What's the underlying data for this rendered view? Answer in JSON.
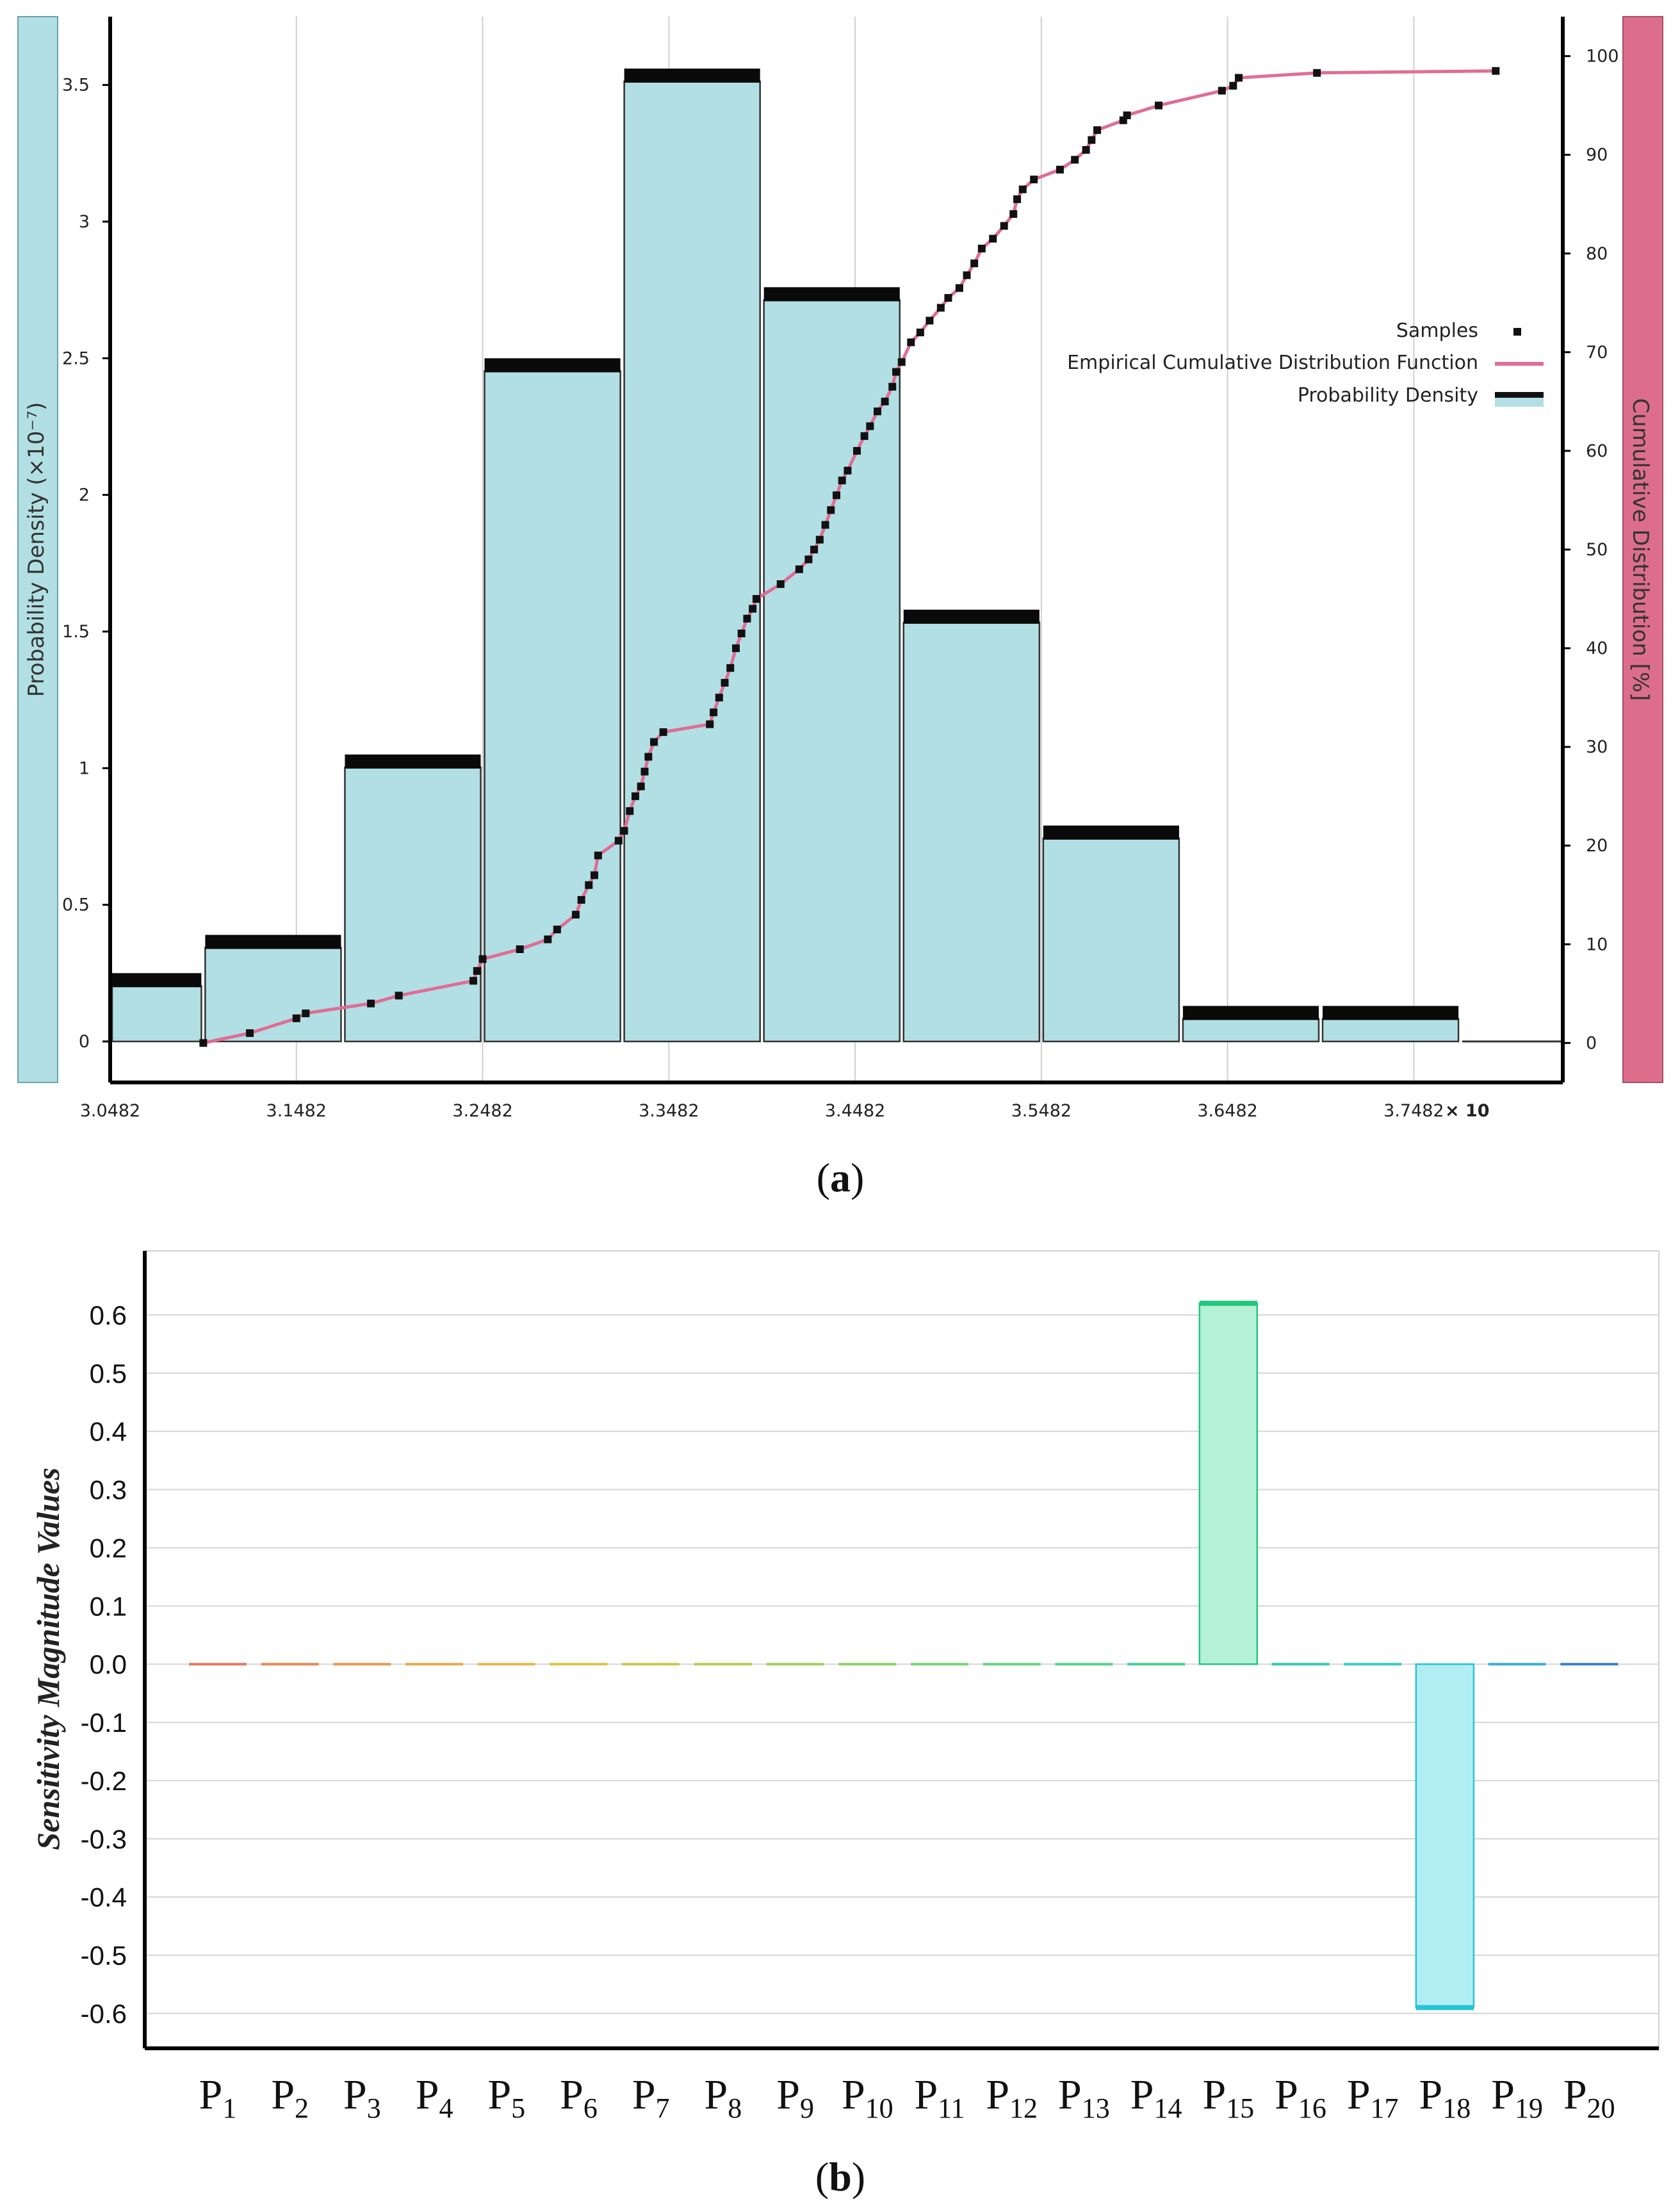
{
  "captions": {
    "a": "a",
    "b": "b"
  },
  "chart_data": [
    {
      "type": "bar",
      "panel": "a",
      "xlabel": "",
      "x_multiplier_label": "× 10",
      "x_ticks": [
        "3.0482",
        "3.1482",
        "3.2482",
        "3.3482",
        "3.4482",
        "3.5482",
        "3.6482",
        "3.7482"
      ],
      "xlim": [
        3.0482,
        3.8282
      ],
      "ylabel_left": "Probability Density  (×10⁻⁷)",
      "ylim_left": [
        -0.15,
        3.75
      ],
      "y_ticks_left": [
        "0",
        "0.5",
        "1",
        "1.5",
        "2",
        "2.5",
        "3",
        "3.5"
      ],
      "ylabel_right": "Cumulative Distribution [%]",
      "ylim_right": [
        -4,
        104
      ],
      "y_ticks_right": [
        "0",
        "10",
        "20",
        "30",
        "40",
        "50",
        "60",
        "70",
        "80",
        "90",
        "100"
      ],
      "grid": "vertical",
      "legend_position": "right",
      "legend": [
        {
          "label": "Samples",
          "kind": "marker"
        },
        {
          "label": "Empirical Cumulative Distribution Function",
          "kind": "line"
        },
        {
          "label": "Probability Density",
          "kind": "bar"
        }
      ],
      "bins": [
        {
          "start": 3.0482,
          "end": 3.0982,
          "value": 0.25
        },
        {
          "start": 3.0982,
          "end": 3.1732,
          "value": 0.39
        },
        {
          "start": 3.1732,
          "end": 3.2482,
          "value": 1.05
        },
        {
          "start": 3.2482,
          "end": 3.3232,
          "value": 2.5
        },
        {
          "start": 3.3232,
          "end": 3.3982,
          "value": 3.56
        },
        {
          "start": 3.3982,
          "end": 3.4732,
          "value": 2.76
        },
        {
          "start": 3.4732,
          "end": 3.5482,
          "value": 1.58
        },
        {
          "start": 3.5482,
          "end": 3.6232,
          "value": 0.79
        },
        {
          "start": 3.6232,
          "end": 3.6982,
          "value": 0.13
        },
        {
          "start": 3.6982,
          "end": 3.7732,
          "value": 0.13
        },
        {
          "start": 3.7732,
          "end": 3.8282,
          "value": 0.0
        }
      ],
      "ecdf_samples": {
        "x": [
          3.0982,
          3.1232,
          3.1482,
          3.1532,
          3.1882,
          3.2032,
          3.2432,
          3.2452,
          3.2482,
          3.2682,
          3.2832,
          3.2882,
          3.2982,
          3.3012,
          3.3052,
          3.3082,
          3.3102,
          3.3212,
          3.3242,
          3.3272,
          3.3302,
          3.3332,
          3.3352,
          3.3372,
          3.3402,
          3.3452,
          3.3702,
          3.3722,
          3.3752,
          3.3782,
          3.3812,
          3.3842,
          3.3872,
          3.3902,
          3.3932,
          3.3952,
          3.4082,
          3.4182,
          3.4232,
          3.4262,
          3.4292,
          3.4322,
          3.4352,
          3.4382,
          3.4412,
          3.4442,
          3.4492,
          3.4532,
          3.4562,
          3.4602,
          3.4642,
          3.4682,
          3.4702,
          3.4732,
          3.4782,
          3.4832,
          3.4882,
          3.4942,
          3.4982,
          3.5042,
          3.5082,
          3.5122,
          3.5162,
          3.5222,
          3.5282,
          3.5332,
          3.5352,
          3.5382,
          3.5442,
          3.5582,
          3.5662,
          3.5722,
          3.5752,
          3.5782,
          3.5922,
          3.5942,
          3.6112,
          3.6452,
          3.6512,
          3.6542,
          3.6962,
          3.7922
        ],
        "y": [
          0,
          1,
          2.5,
          3,
          4,
          4.8,
          6.3,
          7.3,
          8.5,
          9.5,
          10.5,
          11.5,
          13,
          14.5,
          16,
          17,
          19,
          20.5,
          21.5,
          23.5,
          25,
          26,
          27.5,
          29,
          30.5,
          31.5,
          32.3,
          33.5,
          35,
          36.5,
          38,
          40,
          41.5,
          43,
          44,
          45,
          46.5,
          48,
          49,
          50,
          51,
          52.5,
          54,
          55.5,
          57,
          58,
          60,
          61.5,
          62.5,
          64,
          65,
          66.5,
          68,
          69,
          71,
          72,
          73.2,
          74.5,
          75.5,
          76.5,
          77.8,
          79,
          80.5,
          81.5,
          82.8,
          84,
          85.5,
          86.5,
          87.5,
          88.5,
          89.5,
          90.5,
          91.5,
          92.5,
          93.5,
          94,
          95,
          96.5,
          97,
          97.8,
          98.3,
          98.5
        ]
      }
    },
    {
      "type": "bar",
      "panel": "b",
      "ylabel": "Sensitivity Magnitude Values",
      "ylim": [
        -0.66,
        0.71
      ],
      "y_ticks": [
        "0.6",
        "0.5",
        "0.4",
        "0.3",
        "0.2",
        "0.1",
        "0.0",
        "-0.1",
        "-0.2",
        "-0.3",
        "-0.4",
        "-0.5",
        "-0.6"
      ],
      "grid": "horizontal",
      "categories": [
        {
          "p": "P",
          "sub": "1"
        },
        {
          "p": "P",
          "sub": "2"
        },
        {
          "p": "P",
          "sub": "3"
        },
        {
          "p": "P",
          "sub": "4"
        },
        {
          "p": "P",
          "sub": "5"
        },
        {
          "p": "P",
          "sub": "6"
        },
        {
          "p": "P",
          "sub": "7"
        },
        {
          "p": "P",
          "sub": "8"
        },
        {
          "p": "P",
          "sub": "9"
        },
        {
          "p": "P",
          "sub": "10"
        },
        {
          "p": "P",
          "sub": "11"
        },
        {
          "p": "P",
          "sub": "12"
        },
        {
          "p": "P",
          "sub": "13"
        },
        {
          "p": "P",
          "sub": "14"
        },
        {
          "p": "P",
          "sub": "15"
        },
        {
          "p": "P",
          "sub": "16"
        },
        {
          "p": "P",
          "sub": "17"
        },
        {
          "p": "P",
          "sub": "18"
        },
        {
          "p": "P",
          "sub": "19"
        },
        {
          "p": "P",
          "sub": "20"
        }
      ],
      "values": [
        0,
        0,
        0,
        0,
        0,
        0,
        0,
        0,
        0,
        0,
        0,
        0,
        0,
        0,
        0.62,
        0,
        0,
        -0.59,
        0,
        0
      ],
      "colors": [
        "#e07a5f",
        "#e38a55",
        "#e59a4f",
        "#e6a94a",
        "#e4b946",
        "#dcc345",
        "#c9c84b",
        "#b6cc55",
        "#a1cf5f",
        "#8ed16a",
        "#7bd174",
        "#68d17f",
        "#56d08a",
        "#44ce95",
        "#22c77e",
        "#33c9b5",
        "#3ac9c4",
        "#26c4d6",
        "#3aaed6",
        "#3b7fc4"
      ],
      "fills": {
        "positive": "#b5f1d6",
        "negative": "#b1eef4"
      }
    }
  ]
}
